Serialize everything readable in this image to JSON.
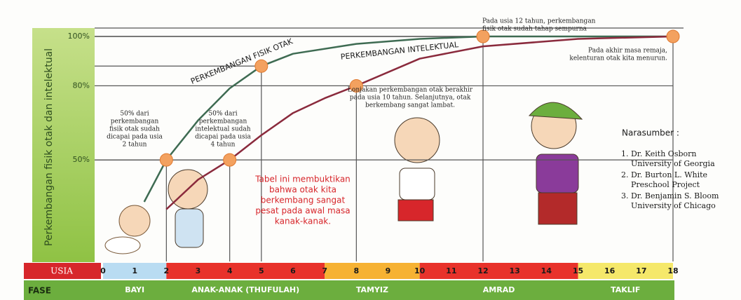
{
  "chart_data": {
    "type": "line",
    "y_label": "Perkembangan fisik otak dan intelektual",
    "x_label": "USIA",
    "xlim": [
      0,
      18
    ],
    "xticks": [
      0,
      1,
      2,
      3,
      4,
      5,
      6,
      7,
      8,
      9,
      10,
      11,
      12,
      13,
      14,
      15,
      16,
      17,
      18
    ],
    "ylim": [
      10,
      100
    ],
    "yticks": [
      {
        "value": 50,
        "label": "50%"
      },
      {
        "value": 80,
        "label": "80%"
      },
      {
        "value": 100,
        "label": "100%"
      }
    ],
    "grid": true,
    "series": [
      {
        "name": "PERKEMBANGAN FISIK OTAK",
        "color": "#3e6b52",
        "x": [
          1.3,
          2,
          3,
          4,
          5,
          6,
          8,
          10,
          12,
          15,
          18
        ],
        "values": [
          33,
          50,
          66,
          79,
          88,
          93,
          97,
          99,
          100,
          100,
          100
        ]
      },
      {
        "name": "PERKEMBANGAN INTELEKTUAL",
        "color": "#8a2a3c",
        "x": [
          2,
          3,
          4,
          5,
          6,
          7,
          8,
          10,
          12,
          15,
          18
        ],
        "values": [
          30,
          42,
          50,
          60,
          69,
          75,
          80,
          91,
          96,
          99,
          100
        ]
      }
    ],
    "points": {
      "color": "#f3a15f",
      "x": [
        2,
        4,
        5,
        8,
        12,
        18
      ],
      "values": [
        50,
        50,
        88,
        80,
        100,
        100
      ]
    },
    "age_bands": [
      {
        "from": 0,
        "to": 2,
        "color": "#b9dcf2"
      },
      {
        "from": 2,
        "to": 7,
        "color": "#e8322b"
      },
      {
        "from": 7,
        "to": 10,
        "color": "#f6b233"
      },
      {
        "from": 10,
        "to": 15,
        "color": "#e8322b"
      },
      {
        "from": 15,
        "to": 18,
        "color": "#f5e86a"
      }
    ],
    "phase_label": "FASE",
    "phases": [
      {
        "name": "BAYI",
        "from": 0,
        "to": 2
      },
      {
        "name": "ANAK-ANAK (THUFULAH)",
        "from": 2,
        "to": 7
      },
      {
        "name": "TAMYIZ",
        "from": 7,
        "to": 10
      },
      {
        "name": "AMRAD",
        "from": 10,
        "to": 15
      },
      {
        "name": "TAKLIF",
        "from": 15,
        "to": 18
      }
    ],
    "annotations": [
      {
        "lines": [
          "50% dari",
          "perkembangan",
          "fisik otak sudah",
          "dicapai pada usia",
          "2 tahun"
        ],
        "color": "#222222"
      },
      {
        "lines": [
          "50% dari",
          "perkembangan",
          "intelektual sudah",
          "dicapai pada usia",
          "4 tahun"
        ],
        "color": "#222222"
      },
      {
        "lines": [
          "Tabel ini membuktikan",
          "bahwa otak kita",
          "berkembang sangat",
          "pesat pada awal masa",
          "kanak-kanak."
        ],
        "color": "#d7262b"
      },
      {
        "lines": [
          "Lonjakan perkembangan otak berakhir",
          "pada usia 10 tahun. Selanjutnya, otak",
          "berkembang sangat lambat."
        ],
        "color": "#222222"
      },
      {
        "lines": [
          "Pada usia 12 tahun, perkembangan",
          "fisik otak sudah tahap sempurna"
        ],
        "color": "#222222"
      },
      {
        "lines": [
          "Pada akhir masa remaja,",
          "kelenturan otak kita menurun."
        ],
        "color": "#222222"
      }
    ],
    "sources": {
      "title": "Narasumber :",
      "items": [
        {
          "name": "1. Dr. Keith Osborn",
          "affiliation": "University of Georgia"
        },
        {
          "name": "2. Dr. Burton L. White",
          "affiliation": "Preschool Project"
        },
        {
          "name": "3. Dr. Benjamin S. Bloom",
          "affiliation": "University of Chicago"
        }
      ]
    }
  }
}
